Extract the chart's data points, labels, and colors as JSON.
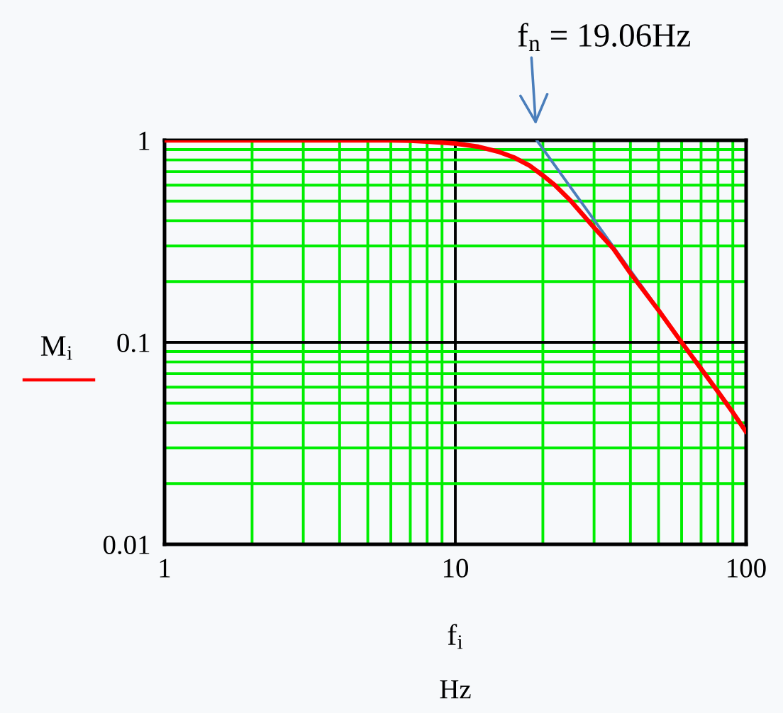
{
  "chart_data": {
    "type": "line",
    "log": "xy",
    "xlim": [
      1,
      100
    ],
    "ylim": [
      0.01,
      1
    ],
    "xticks": [
      1,
      {
        "value": 2,
        "label": null
      },
      {
        "value": 3,
        "label": null
      },
      {
        "value": 4,
        "label": null
      },
      {
        "value": 5,
        "label": null
      },
      {
        "value": 6,
        "label": null
      },
      {
        "value": 7,
        "label": null
      },
      {
        "value": 8,
        "label": null
      },
      {
        "value": 9,
        "label": null
      },
      10,
      {
        "value": 20,
        "label": null
      },
      {
        "value": 30,
        "label": null
      },
      {
        "value": 40,
        "label": null
      },
      {
        "value": 50,
        "label": null
      },
      {
        "value": 60,
        "label": null
      },
      {
        "value": 70,
        "label": null
      },
      {
        "value": 80,
        "label": null
      },
      {
        "value": 90,
        "label": null
      },
      100
    ],
    "yticks": [
      0.01,
      {
        "value": 0.02,
        "label": null
      },
      {
        "value": 0.03,
        "label": null
      },
      {
        "value": 0.04,
        "label": null
      },
      {
        "value": 0.05,
        "label": null
      },
      {
        "value": 0.06,
        "label": null
      },
      {
        "value": 0.07,
        "label": null
      },
      {
        "value": 0.08,
        "label": null
      },
      {
        "value": 0.09,
        "label": null
      },
      0.1,
      {
        "value": 0.2,
        "label": null
      },
      {
        "value": 0.3,
        "label": null
      },
      {
        "value": 0.4,
        "label": null
      },
      {
        "value": 0.5,
        "label": null
      },
      {
        "value": 0.6,
        "label": null
      },
      {
        "value": 0.7,
        "label": null
      },
      {
        "value": 0.8,
        "label": null
      },
      {
        "value": 0.9,
        "label": null
      },
      1
    ],
    "grid": true,
    "xlabel": "f$_{i}$\nHz",
    "ylabel": "M$_{i}$",
    "annotations": [
      {
        "text": "f$_{n}$ = 19.06Hz",
        "x": 19.06,
        "y": 1
      }
    ],
    "series": [
      {
        "color": "#ff0000",
        "x": [
          1,
          2,
          4,
          6,
          7,
          8,
          10,
          12,
          14,
          16,
          18,
          20,
          22,
          25,
          30,
          35,
          40,
          50,
          60,
          70,
          80,
          90,
          100
        ],
        "values": [
          1,
          1,
          1,
          1,
          0.996,
          0.985,
          0.964,
          0.93,
          0.88,
          0.82,
          0.75,
          0.67,
          0.6,
          0.5,
          0.37,
          0.29,
          0.22,
          0.144,
          0.1,
          0.074,
          0.057,
          0.045,
          0.036
        ]
      },
      {
        "color": "#4a7ebb",
        "x": [
          19.06,
          100
        ],
        "values": [
          1,
          0.0363
        ]
      }
    ]
  }
}
